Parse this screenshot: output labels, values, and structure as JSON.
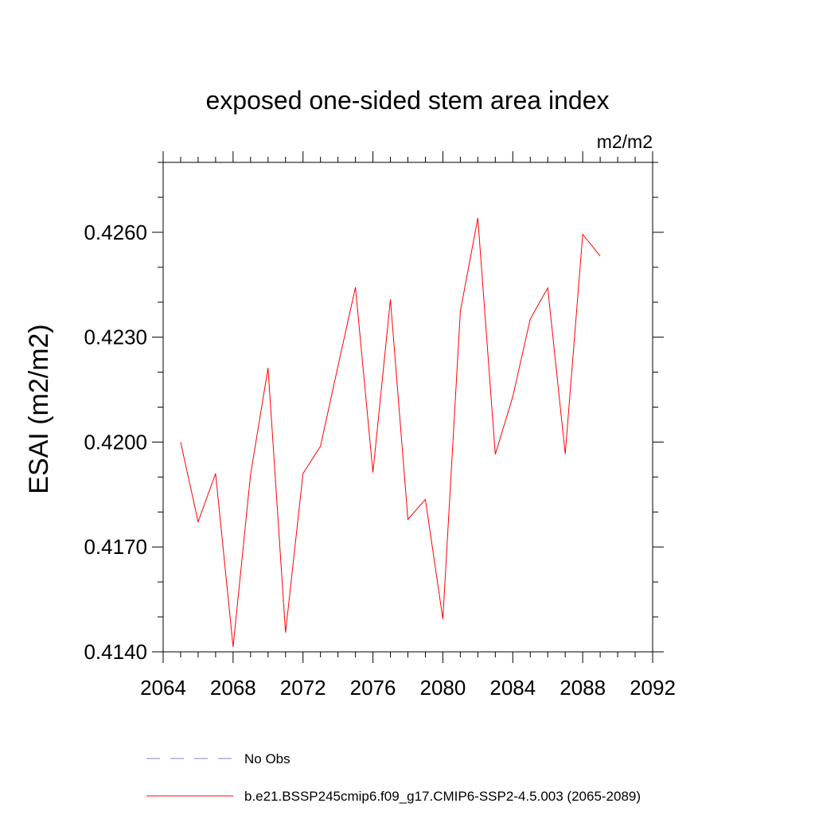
{
  "chart_data": {
    "type": "line",
    "title": "exposed one-sided stem area index",
    "units": "m2/m2",
    "ylabel": "ESAI  (m2/m2)",
    "xlabel": "",
    "xlim": [
      2064,
      2092
    ],
    "ylim": [
      0.414,
      0.428
    ],
    "x_ticks": [
      "2064",
      "2068",
      "2072",
      "2076",
      "2080",
      "2084",
      "2088",
      "2092"
    ],
    "x_tick_values": [
      2064,
      2068,
      2072,
      2076,
      2080,
      2084,
      2088,
      2092
    ],
    "y_ticks": [
      "0.4140",
      "0.4170",
      "0.4200",
      "0.4230",
      "0.4260"
    ],
    "y_tick_values": [
      0.414,
      0.417,
      0.42,
      0.423,
      0.426
    ],
    "grid": false,
    "legend_position": "bottom",
    "series": [
      {
        "name": "b.e21.BSSP245cmip6.f09_g17.CMIP6-SSP2-4.5.003 (2065-2089)",
        "color": "#ff0000",
        "style": "solid",
        "x": [
          2065,
          2066,
          2067,
          2068,
          2069,
          2070,
          2071,
          2072,
          2073,
          2074,
          2075,
          2076,
          2077,
          2078,
          2079,
          2080,
          2081,
          2082,
          2083,
          2084,
          2085,
          2086,
          2087,
          2088,
          2089
        ],
        "y": [
          0.42,
          0.41772,
          0.4191,
          0.41414,
          0.41907,
          0.42212,
          0.41455,
          0.4191,
          0.41988,
          0.42217,
          0.42443,
          0.41913,
          0.42408,
          0.41779,
          0.41836,
          0.41494,
          0.42374,
          0.42641,
          0.41965,
          0.4213,
          0.42352,
          0.42441,
          0.41966,
          0.42594,
          0.42532
        ]
      },
      {
        "name": "No Obs",
        "color": "#8080c0",
        "style": "dashed",
        "x": [],
        "y": []
      }
    ]
  }
}
